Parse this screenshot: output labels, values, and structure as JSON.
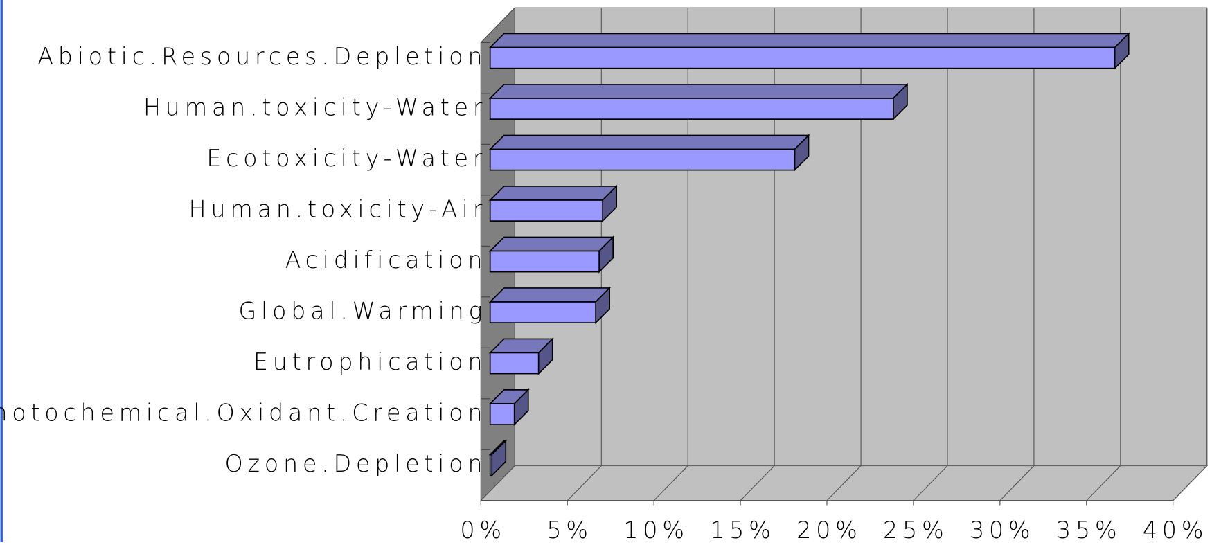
{
  "chart_data": {
    "type": "bar3d-horizontal",
    "categories": [
      "Abiotic.Resources.Depletion",
      "Human.toxicity-Water",
      "Ecotoxicity-Water",
      "Human.toxicity-Air",
      "Acidification",
      "Global.Warming",
      "Eutrophication",
      "Photochemical.Oxidant.Creation",
      "Ozone.Depletion"
    ],
    "values": [
      36.1,
      23.3,
      17.6,
      6.5,
      6.3,
      6.1,
      2.8,
      1.4,
      0.1
    ],
    "color": "#9999ff",
    "xlim": [
      0,
      40
    ],
    "xticks": [
      {
        "value": 0,
        "label": "0%"
      },
      {
        "value": 5,
        "label": "5%"
      },
      {
        "value": 10,
        "label": "10%"
      },
      {
        "value": 15,
        "label": "15%"
      },
      {
        "value": 20,
        "label": "20%"
      },
      {
        "value": 25,
        "label": "25%"
      },
      {
        "value": 30,
        "label": "30%"
      },
      {
        "value": 35,
        "label": "35%"
      },
      {
        "value": 40,
        "label": "40%"
      }
    ],
    "grid": true
  }
}
